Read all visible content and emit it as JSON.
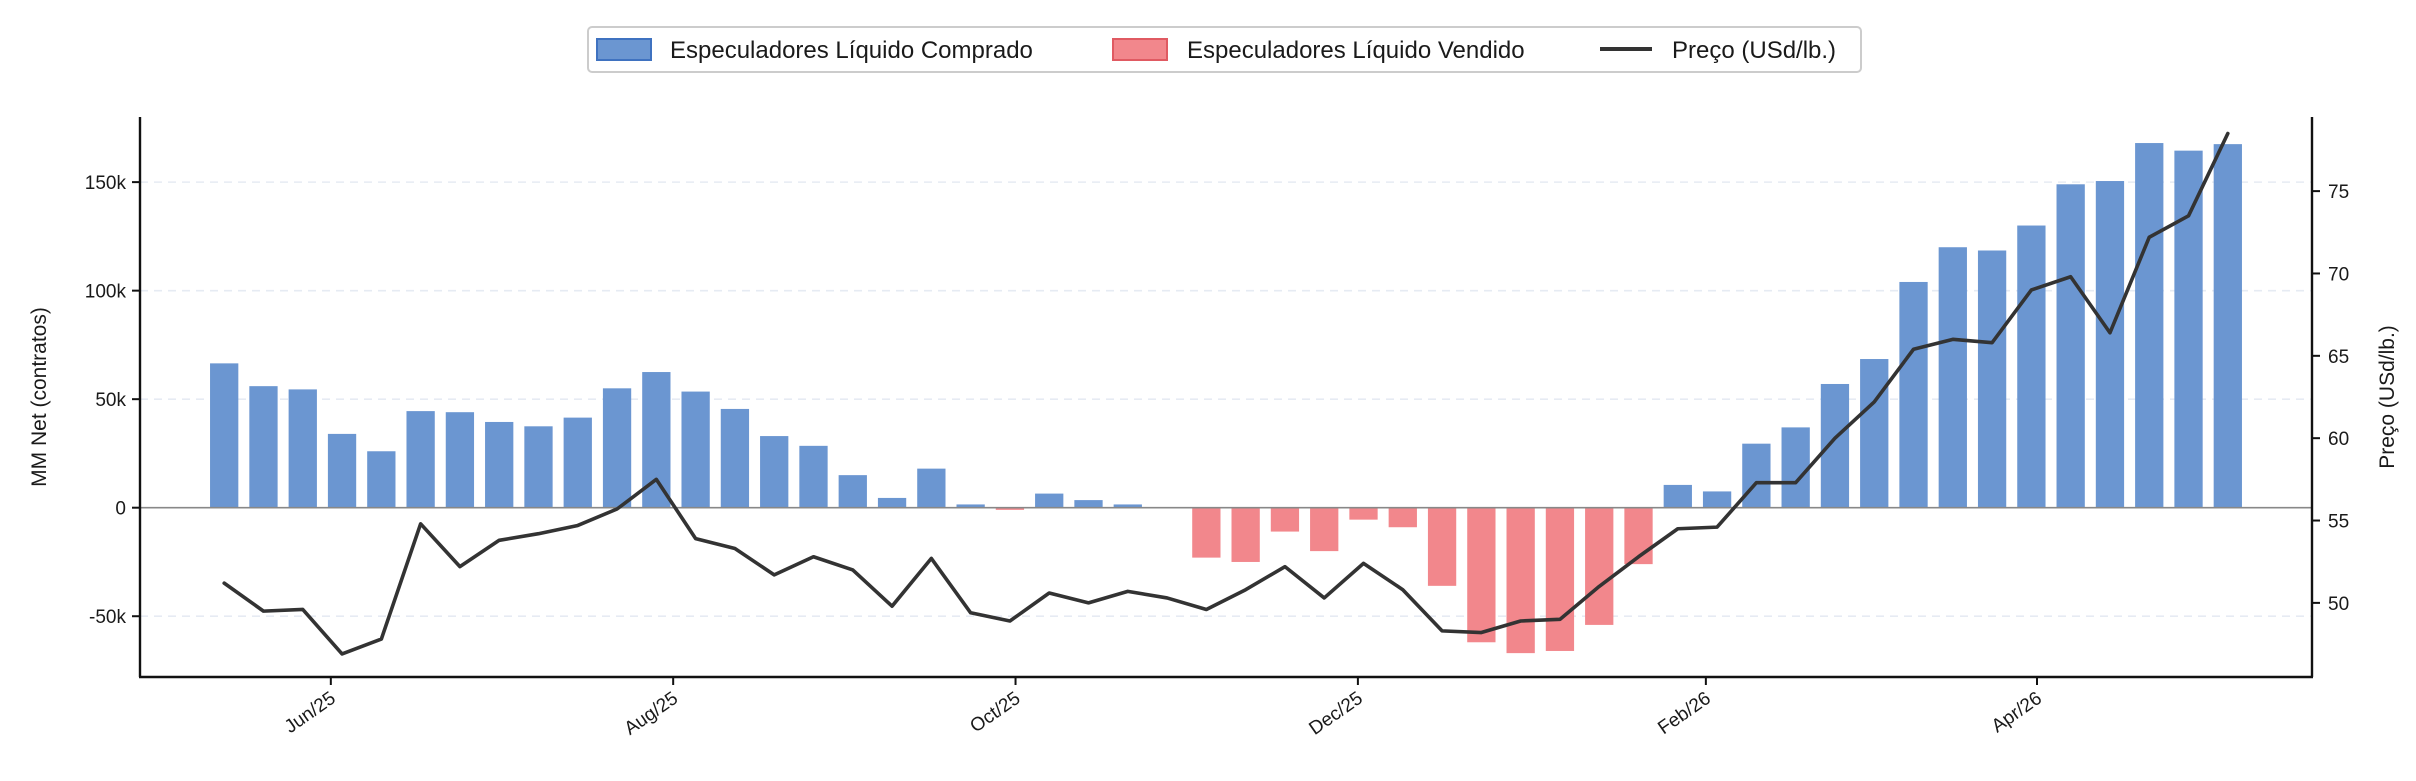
{
  "chart_data": {
    "type": "bar+line",
    "title": "",
    "xlabel": "",
    "ylabel": "MM Net (contratos)",
    "y2label": "Preço (USd/lb.)",
    "ylim": [
      -78000,
      180000
    ],
    "y2lim": [
      45.5,
      79.5
    ],
    "xlim": [
      "2025-04-28",
      "2026-05-20"
    ],
    "grid": "horizontal dashed",
    "legend_position": "top-center",
    "colors": {
      "positive": "#6b96d1",
      "negative": "#f2878c",
      "line": "#333333",
      "zero_line": "#888888"
    },
    "legend": {
      "positive": "Especuladores Líquido Comprado",
      "negative": "Especuladores Líquido Vendido",
      "line": "Preço (USd/lb.)"
    },
    "x_ticks": [
      {
        "date": "2025-06-01",
        "label": "Jun/25"
      },
      {
        "date": "2025-08-01",
        "label": "Aug/25"
      },
      {
        "date": "2025-10-01",
        "label": "Oct/25"
      },
      {
        "date": "2025-12-01",
        "label": "Dec/25"
      },
      {
        "date": "2026-02-01",
        "label": "Feb/26"
      },
      {
        "date": "2026-04-01",
        "label": "Apr/26"
      }
    ],
    "y_ticks": [
      {
        "value": -50000,
        "label": "-50k"
      },
      {
        "value": 0,
        "label": "0"
      },
      {
        "value": 50000,
        "label": "50k"
      },
      {
        "value": 100000,
        "label": "100k"
      },
      {
        "value": 150000,
        "label": "150k"
      }
    ],
    "y2_ticks": [
      {
        "value": 50,
        "label": "50"
      },
      {
        "value": 55,
        "label": "55"
      },
      {
        "value": 60,
        "label": "60"
      },
      {
        "value": 65,
        "label": "65"
      },
      {
        "value": 70,
        "label": "70"
      },
      {
        "value": 75,
        "label": "75"
      }
    ],
    "dates": [
      "2025-05-13",
      "2025-05-20",
      "2025-05-27",
      "2025-06-03",
      "2025-06-10",
      "2025-06-17",
      "2025-06-24",
      "2025-07-01",
      "2025-07-08",
      "2025-07-15",
      "2025-07-22",
      "2025-07-29",
      "2025-08-05",
      "2025-08-12",
      "2025-08-19",
      "2025-08-26",
      "2025-09-02",
      "2025-09-09",
      "2025-09-16",
      "2025-09-23",
      "2025-09-30",
      "2025-10-07",
      "2025-10-14",
      "2025-10-21",
      "2025-10-28",
      "2025-11-04",
      "2025-11-11",
      "2025-11-18",
      "2025-11-25",
      "2025-12-02",
      "2025-12-09",
      "2025-12-16",
      "2025-12-23",
      "2025-12-30",
      "2026-01-06",
      "2026-01-13",
      "2026-01-20",
      "2026-01-27",
      "2026-02-03",
      "2026-02-10",
      "2026-02-17",
      "2026-02-24",
      "2026-03-03",
      "2026-03-10",
      "2026-03-17",
      "2026-03-24",
      "2026-03-31",
      "2026-04-07",
      "2026-04-14",
      "2026-04-21",
      "2026-04-28",
      "2026-05-05"
    ],
    "mm_net": [
      66500,
      56000,
      54500,
      34000,
      26000,
      44500,
      44000,
      39500,
      37500,
      41500,
      55000,
      62500,
      53500,
      45500,
      33000,
      28500,
      15000,
      4500,
      18000,
      1500,
      -1000,
      6500,
      3500,
      1500,
      0,
      -23000,
      -25000,
      -11000,
      -20000,
      -5500,
      -9000,
      -36000,
      -62000,
      -67000,
      -66000,
      -54000,
      -26000,
      10500,
      7500,
      29500,
      37000,
      57000,
      68500,
      104000,
      120000,
      118500,
      130000,
      149000,
      150500,
      168000,
      164500,
      167500
    ],
    "price": [
      51.2,
      49.5,
      49.6,
      46.9,
      47.8,
      54.8,
      52.2,
      53.8,
      54.2,
      54.7,
      55.7,
      57.5,
      53.9,
      53.3,
      51.7,
      52.8,
      52.0,
      49.8,
      52.7,
      49.4,
      48.9,
      50.6,
      50.0,
      50.7,
      50.3,
      49.6,
      50.8,
      52.2,
      50.3,
      52.4,
      50.8,
      48.3,
      48.2,
      48.9,
      49.0,
      51.0,
      52.8,
      54.5,
      54.6,
      57.3,
      57.3,
      60.0,
      62.2,
      65.4,
      66.0,
      65.8,
      69.0,
      69.8,
      66.4,
      72.2,
      73.5,
      78.5
    ]
  }
}
